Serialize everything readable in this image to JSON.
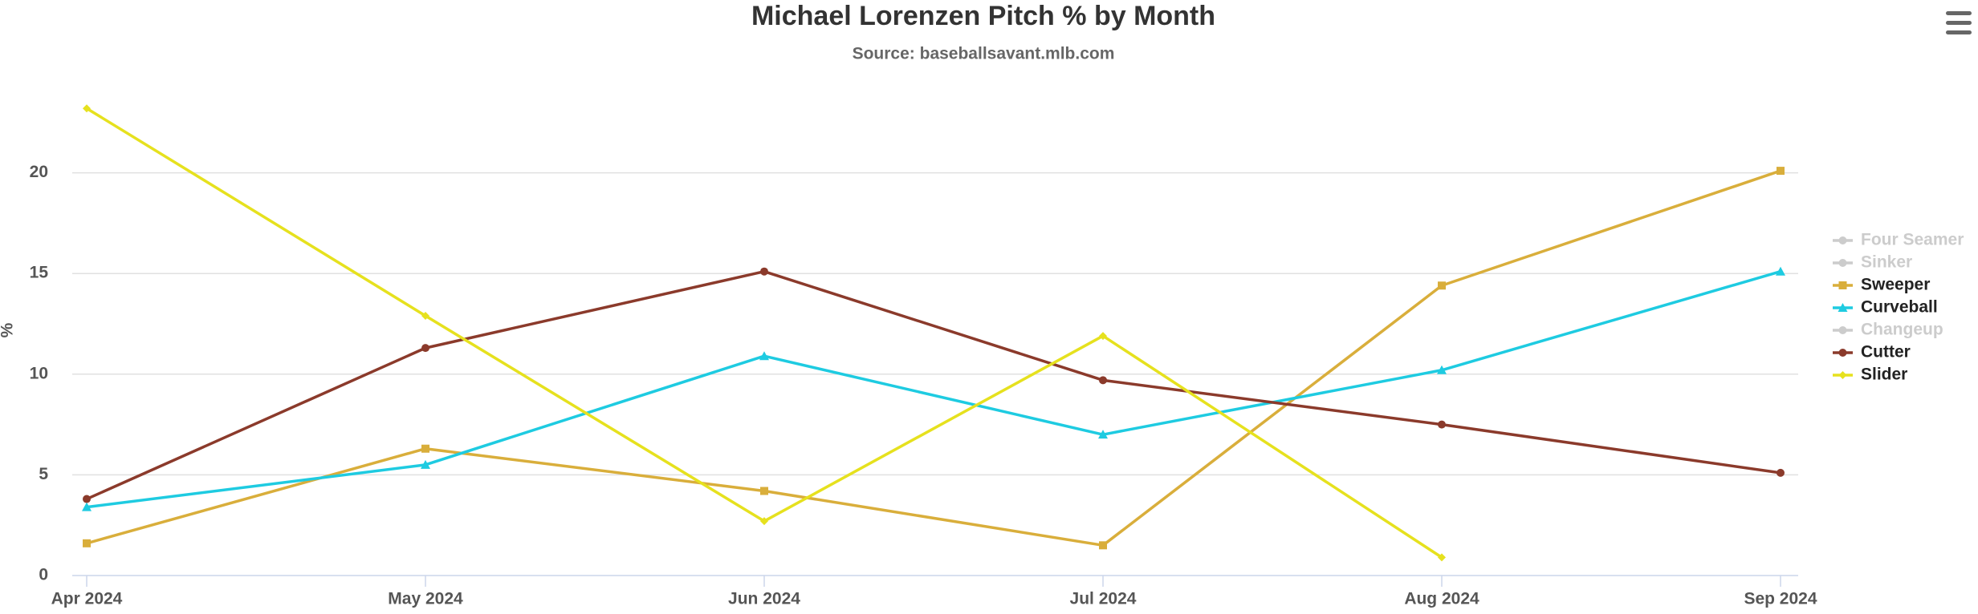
{
  "chart_data": {
    "type": "line",
    "title": "Michael Lorenzen Pitch % by Month",
    "subtitle": "Source: baseballsavant.mlb.com",
    "y_label": "%",
    "categories": [
      "Apr 2024",
      "May 2024",
      "Jun 2024",
      "Jul 2024",
      "Aug 2024",
      "Sep 2024"
    ],
    "ylim": [
      0,
      25
    ],
    "yticks": [
      0,
      5,
      10,
      15,
      20
    ],
    "grid": true,
    "legend": "right",
    "series": [
      {
        "name": "Four Seamer",
        "color": "#cccccc",
        "visible": false,
        "values": [
          null,
          null,
          null,
          null,
          null,
          null
        ]
      },
      {
        "name": "Sinker",
        "color": "#cccccc",
        "visible": false,
        "values": [
          null,
          null,
          null,
          null,
          null,
          null
        ]
      },
      {
        "name": "Sweeper",
        "color": "#d9ae3b",
        "marker": "square",
        "visible": true,
        "values": [
          1.6,
          6.3,
          4.2,
          1.5,
          14.4,
          20.1
        ]
      },
      {
        "name": "Curveball",
        "color": "#1ecbe1",
        "marker": "triangle",
        "visible": true,
        "values": [
          3.4,
          5.5,
          10.9,
          7.0,
          10.2,
          15.1
        ]
      },
      {
        "name": "Changeup",
        "color": "#cccccc",
        "visible": false,
        "values": [
          null,
          null,
          null,
          null,
          null,
          null
        ]
      },
      {
        "name": "Cutter",
        "color": "#8b3a2b",
        "marker": "circle",
        "visible": true,
        "values": [
          3.8,
          11.3,
          15.1,
          9.7,
          7.5,
          5.1
        ]
      },
      {
        "name": "Slider",
        "color": "#e6e11e",
        "marker": "diamond",
        "visible": true,
        "values": [
          23.2,
          12.9,
          2.7,
          11.9,
          0.9,
          null
        ]
      }
    ]
  }
}
